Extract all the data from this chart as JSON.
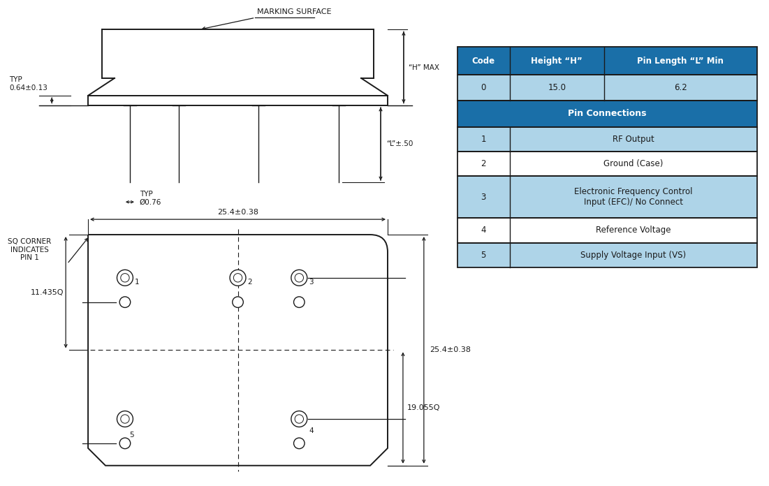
{
  "bg_color": "#ffffff",
  "line_color": "#1a1a1a",
  "table": {
    "header_bg": "#1a6fa8",
    "header_text_color": "#ffffff",
    "row_light_bg": "#aed4e8",
    "row_white_bg": "#ffffff",
    "border_color": "#1a1a1a",
    "headers": [
      "Code",
      "Height “H”",
      "Pin Length “L” Min"
    ],
    "data_rows": [
      [
        "0",
        "15.0",
        "6.2"
      ]
    ],
    "pin_connections_label": "Pin Connections",
    "pin_rows": [
      [
        "1",
        "RF Output",
        "light"
      ],
      [
        "2",
        "Ground (Case)",
        "white"
      ],
      [
        "3",
        "Electronic Frequency Control\nInput (EFC)/ No Connect",
        "light"
      ],
      [
        "4",
        "Reference Voltage",
        "white"
      ],
      [
        "5",
        "Supply Voltage Input (VS)",
        "light"
      ]
    ]
  },
  "drawing": {
    "marking_surface_label": "MARKING SURFACE",
    "h_max_label": "“H” MAX",
    "l_label": "“L”±.50",
    "typ_label1": "TYP\n0.64±0.13",
    "typ_label2": "TYP\nØ0.76",
    "dim_25_4": "25.4±0.38",
    "dim_11_435": "11.435Q",
    "dim_19_055": "19.055Q",
    "dim_25_4b": "25.4±0.38",
    "sq_corner_label": "SQ CORNER\nINDICATES\nPIN 1"
  }
}
